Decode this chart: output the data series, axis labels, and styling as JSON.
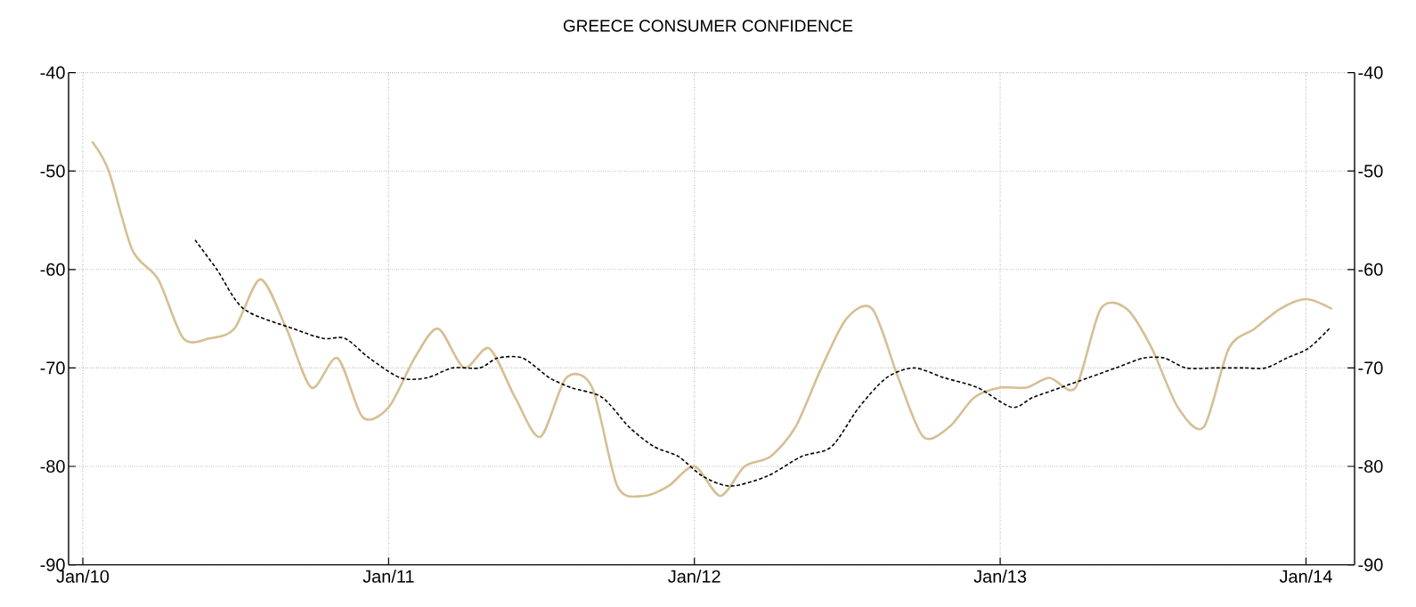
{
  "chart_data": {
    "type": "line",
    "title": "GREECE CONSUMER CONFIDENCE",
    "xlim": [
      "2009-12-15",
      "2014-02-28"
    ],
    "ylim": [
      -90,
      -40
    ],
    "y2lim": [
      -90,
      -40
    ],
    "xticks": [
      {
        "value": "2010-01",
        "label": "Jan/10"
      },
      {
        "value": "2011-01",
        "label": "Jan/11"
      },
      {
        "value": "2012-01",
        "label": "Jan/12"
      },
      {
        "value": "2013-01",
        "label": "Jan/13"
      },
      {
        "value": "2014-01",
        "label": "Jan/14"
      }
    ],
    "yticks": [
      -90,
      -80,
      -70,
      -60,
      -50,
      -40
    ],
    "y2ticks": [
      -90,
      -80,
      -70,
      -60,
      -50,
      -40
    ],
    "grid": true,
    "series": [
      {
        "color": "#d6bf94",
        "line_style": "solid",
        "x": [
          "2010-01-12",
          "2010-02",
          "2010-03",
          "2010-04",
          "2010-05",
          "2010-06",
          "2010-07",
          "2010-08",
          "2010-09",
          "2010-10",
          "2010-11",
          "2010-12",
          "2011-01",
          "2011-02",
          "2011-03",
          "2011-04",
          "2011-05",
          "2011-06",
          "2011-07",
          "2011-08",
          "2011-09",
          "2011-10",
          "2011-11",
          "2011-12",
          "2012-01",
          "2012-02",
          "2012-03",
          "2012-04",
          "2012-05",
          "2012-06",
          "2012-07",
          "2012-08",
          "2012-09",
          "2012-10",
          "2012-11",
          "2012-12",
          "2013-01",
          "2013-02",
          "2013-03",
          "2013-04",
          "2013-05",
          "2013-06",
          "2013-07",
          "2013-08",
          "2013-09",
          "2013-10",
          "2013-11",
          "2013-12",
          "2014-01",
          "2014-02"
        ],
        "values": [
          -47,
          -50,
          -58,
          -61,
          -67,
          -67,
          -66,
          -61,
          -66,
          -72,
          -69,
          -75,
          -74,
          -69,
          -66,
          -70,
          -68,
          -73,
          -77,
          -71,
          -72,
          -82,
          -83,
          -82,
          -80,
          -83,
          -80,
          -79,
          -76,
          -70,
          -65,
          -64,
          -71,
          -77,
          -76,
          -73,
          -72,
          -72,
          -71,
          -72,
          -64,
          -64,
          -68,
          -74,
          -76,
          -68,
          -66,
          -64,
          -63,
          -64
        ]
      },
      {
        "color": "#000000",
        "line_style": "dashed",
        "x": [
          "2010-05-15",
          "2010-06-10",
          "2010-07-12",
          "2010-09-09",
          "2010-10-15",
          "2010-11-10",
          "2010-12-09",
          "2011-01-15",
          "2011-02-16",
          "2011-03-18",
          "2011-04-20",
          "2011-05-11",
          "2011-06-10",
          "2011-07-12",
          "2011-08-07",
          "2011-09-13",
          "2011-10-15",
          "2011-11-14",
          "2011-12-13",
          "2012-01-11",
          "2012-02-13",
          "2012-03-28",
          "2012-05-08",
          "2012-06-13",
          "2012-07-16",
          "2012-08-18",
          "2012-09-20",
          "2012-10-26",
          "2012-12-05",
          "2013-01-15",
          "2013-02-09",
          "2013-03-14",
          "2013-04-16",
          "2013-05-19",
          "2013-06-21",
          "2013-07-16",
          "2013-08-11",
          "2013-09-16",
          "2013-10-19",
          "2013-11-14",
          "2013-12-09",
          "2014-01-04",
          "2014-01-29"
        ],
        "values": [
          -57,
          -60,
          -64,
          -66,
          -67,
          -67,
          -69,
          -71,
          -71,
          -70,
          -70,
          -69,
          -69,
          -71,
          -72,
          -73,
          -76,
          -78,
          -79,
          -81,
          -82,
          -81,
          -79,
          -78,
          -74,
          -71,
          -70,
          -71,
          -72,
          -74,
          -73,
          -72,
          -71,
          -70,
          -69,
          -69,
          -70,
          -70,
          -70,
          -70,
          -69,
          -68,
          -66
        ]
      }
    ]
  }
}
